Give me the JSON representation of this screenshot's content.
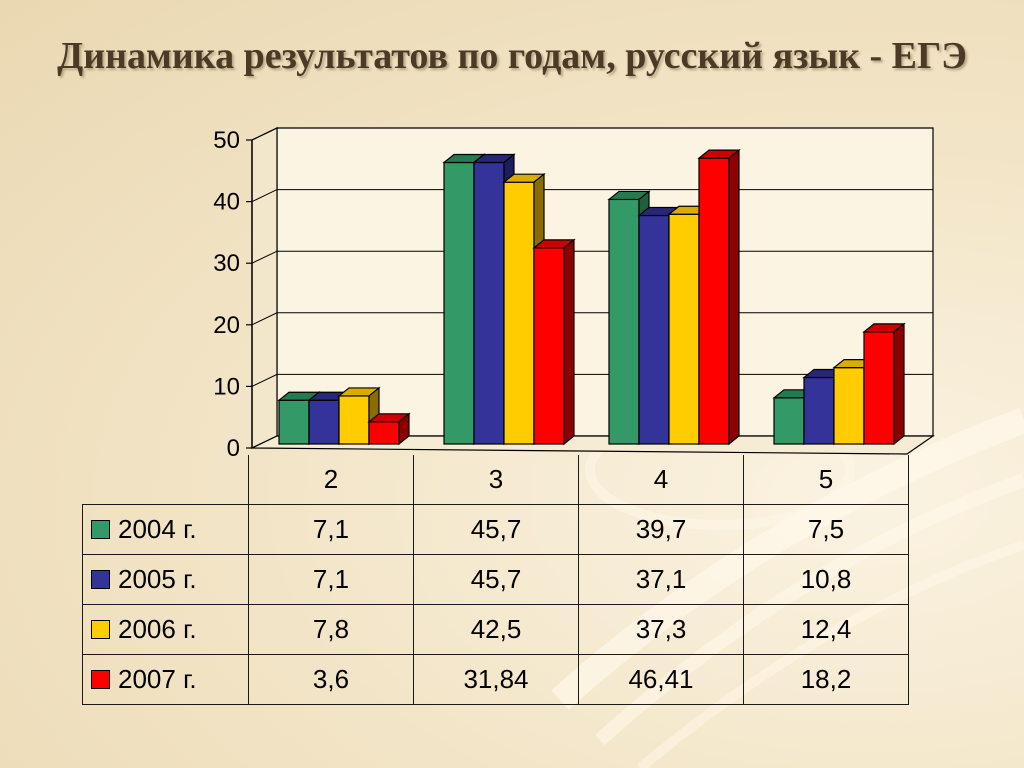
{
  "title": "Динамика результатов по годам, русский язык - ЕГЭ",
  "chart_data": {
    "type": "bar",
    "categories": [
      "2",
      "3",
      "4",
      "5"
    ],
    "series": [
      {
        "name": "2004 г.",
        "values": [
          7.1,
          45.7,
          39.7,
          7.5
        ],
        "labels": [
          "7,1",
          "45,7",
          "39,7",
          "7,5"
        ],
        "color": "#339966",
        "side_color": "#1f5e3f",
        "top_color": "#267a50"
      },
      {
        "name": "2005 г.",
        "values": [
          7.1,
          45.7,
          37.1,
          10.8
        ],
        "labels": [
          "7,1",
          "45,7",
          "37,1",
          "10,8"
        ],
        "color": "#333399",
        "side_color": "#1c1c5e",
        "top_color": "#27277a"
      },
      {
        "name": "2006 г.",
        "values": [
          7.8,
          42.5,
          37.3,
          12.4
        ],
        "labels": [
          "7,8",
          "42,5",
          "37,3",
          "12,4"
        ],
        "color": "#ffcc00",
        "side_color": "#8a6d00",
        "top_color": "#d9ad00"
      },
      {
        "name": "2007 г.",
        "values": [
          3.6,
          31.84,
          46.41,
          18.2
        ],
        "labels": [
          "3,6",
          "31,84",
          "46,41",
          "18,2"
        ],
        "color": "#ff0000",
        "side_color": "#8c0000",
        "top_color": "#cc0000"
      }
    ],
    "ylim": [
      0,
      50
    ],
    "yticks": [
      0,
      10,
      20,
      30,
      40,
      50
    ],
    "grid": true,
    "legend": "data-table-below"
  }
}
